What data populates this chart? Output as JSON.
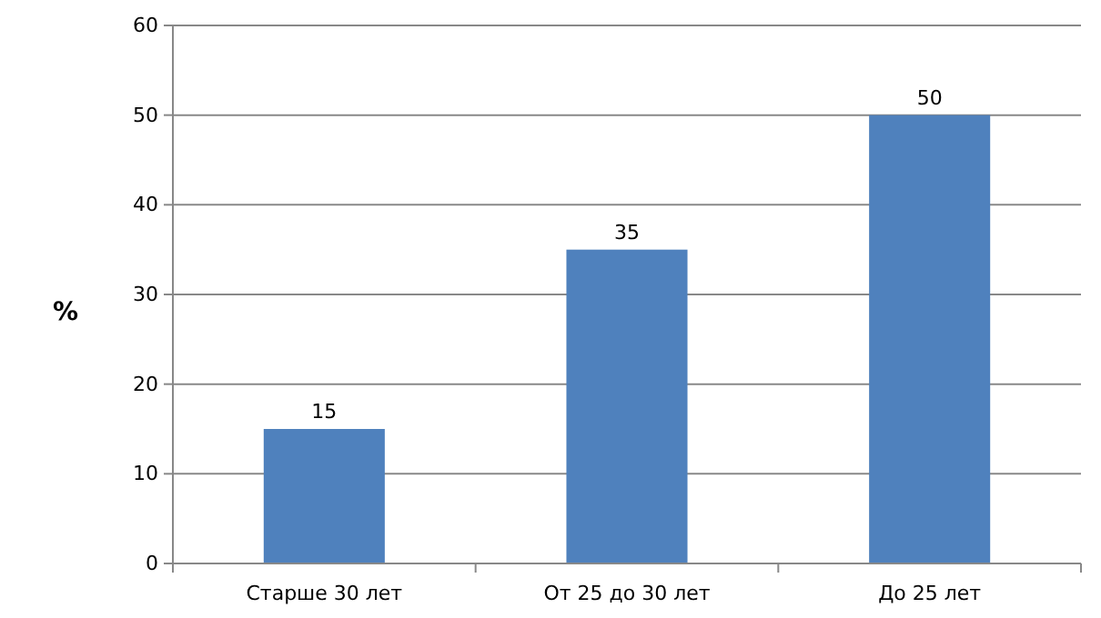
{
  "chart_data": {
    "type": "bar",
    "ylabel": "%",
    "categories": [
      "Старше 30 лет",
      "От 25 до 30 лет",
      "До 25 лет"
    ],
    "values": [
      15,
      35,
      50
    ],
    "color": "#4f81bd",
    "ylim": [
      0,
      60
    ],
    "yticks": [
      0,
      10,
      20,
      30,
      40,
      50,
      60
    ],
    "grid": "y",
    "data_labels": true
  }
}
